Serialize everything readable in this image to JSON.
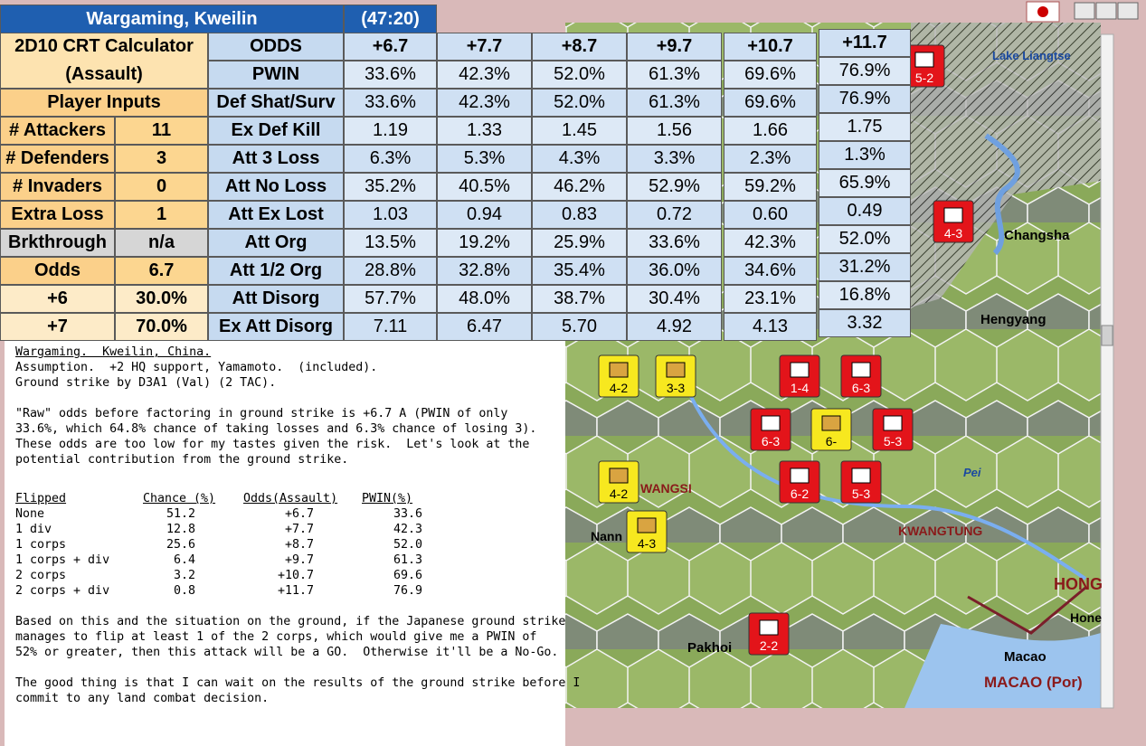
{
  "spreadsheet": {
    "title": "Wargaming, Kweilin",
    "time": "(47:20)",
    "calc_title": [
      "2D10 CRT Calculator",
      "(Assault)"
    ],
    "inputs_header": "Player Inputs",
    "inputs": [
      [
        "# Attackers",
        "11"
      ],
      [
        "# Defenders",
        "3"
      ],
      [
        "# Invaders",
        "0"
      ],
      [
        "Extra Loss",
        "1"
      ],
      [
        "Brkthrough",
        "n/a"
      ],
      [
        "Odds",
        "6.7"
      ],
      [
        "+6",
        "30.0%"
      ],
      [
        "+7",
        "70.0%"
      ]
    ],
    "rows": [
      [
        "ODDS",
        "+6.7",
        "+7.7",
        "+8.7",
        "+9.7",
        "+10.7",
        "+11.7"
      ],
      [
        "PWIN",
        "33.6%",
        "42.3%",
        "52.0%",
        "61.3%",
        "69.6%",
        "76.9%"
      ],
      [
        "Def Shat/Surv",
        "33.6%",
        "42.3%",
        "52.0%",
        "61.3%",
        "69.6%",
        "76.9%"
      ],
      [
        "Ex Def Kill",
        "1.19",
        "1.33",
        "1.45",
        "1.56",
        "1.66",
        "1.75"
      ],
      [
        "Att 3 Loss",
        "6.3%",
        "5.3%",
        "4.3%",
        "3.3%",
        "2.3%",
        "1.3%"
      ],
      [
        "Att No Loss",
        "35.2%",
        "40.5%",
        "46.2%",
        "52.9%",
        "59.2%",
        "65.9%"
      ],
      [
        "Att Ex Lost",
        "1.03",
        "0.94",
        "0.83",
        "0.72",
        "0.60",
        "0.49"
      ],
      [
        "Att Org",
        "13.5%",
        "19.2%",
        "25.9%",
        "33.6%",
        "42.3%",
        "52.0%"
      ],
      [
        "Att 1/2 Org",
        "28.8%",
        "32.8%",
        "35.4%",
        "36.0%",
        "34.6%",
        "31.2%"
      ],
      [
        "Att Disorg",
        "57.7%",
        "48.0%",
        "38.7%",
        "30.4%",
        "23.1%",
        "16.8%"
      ],
      [
        "Ex Att Disorg",
        "7.11",
        "6.47",
        "5.70",
        "4.92",
        "4.13",
        "3.32"
      ]
    ]
  },
  "notes": {
    "heading": "Wargaming.  Kweilin, China.",
    "paragraphs": [
      [
        "Assumption.  +2 HQ support, Yamamoto.  (included).",
        "Ground strike by D3A1 (Val) (2 TAC)."
      ],
      [
        "\"Raw\" odds before factoring in ground strike is +6.7 A (PWIN of only",
        "33.6%, which 64.8% chance of taking losses and 6.3% chance of losing 3).",
        "These odds are too low for my tastes given the risk.  Let's look at the",
        "potential contribution from the ground strike."
      ]
    ],
    "table": {
      "headers": [
        "Flipped",
        "Chance (%)",
        "Odds(Assault)",
        "PWIN(%)"
      ],
      "rows": [
        [
          "None",
          "51.2",
          "+6.7",
          "33.6"
        ],
        [
          "1 div",
          "12.8",
          "+7.7",
          "42.3"
        ],
        [
          "1 corps",
          "25.6",
          "+8.7",
          "52.0"
        ],
        [
          "1 corps + div",
          "6.4",
          "+9.7",
          "61.3"
        ],
        [
          "2 corps",
          "3.2",
          "+10.7",
          "69.6"
        ],
        [
          "2 corps + div",
          "0.8",
          "+11.7",
          "76.9"
        ]
      ]
    },
    "closing": [
      [
        "Based on this and the situation on the ground, if the Japanese ground strike",
        "manages to flip at least 1 of the 2 corps, which would give me a PWIN of",
        "52% or greater, then this attack will be a GO.  Otherwise it'll be a No-Go."
      ],
      [
        "The good thing is that I can wait on the results of the ground strike before I",
        "commit to any land combat decision."
      ]
    ]
  },
  "map": {
    "labels": [
      "Lake Liangtse",
      "Changsha",
      "Hengyang",
      "KWANGTUNG",
      "Pei",
      "WANGSI",
      "Nann",
      "Pakhoi",
      "Macao",
      "MACAO (Por)",
      "HONG",
      "Hone"
    ],
    "counters": [
      "5-2",
      "4-3",
      "4-2",
      "3-3",
      "1-4",
      "6-3",
      "6-3",
      "6-",
      "5-3",
      "4-2",
      "6-2",
      "5-3",
      "4-3",
      "2-2"
    ]
  }
}
